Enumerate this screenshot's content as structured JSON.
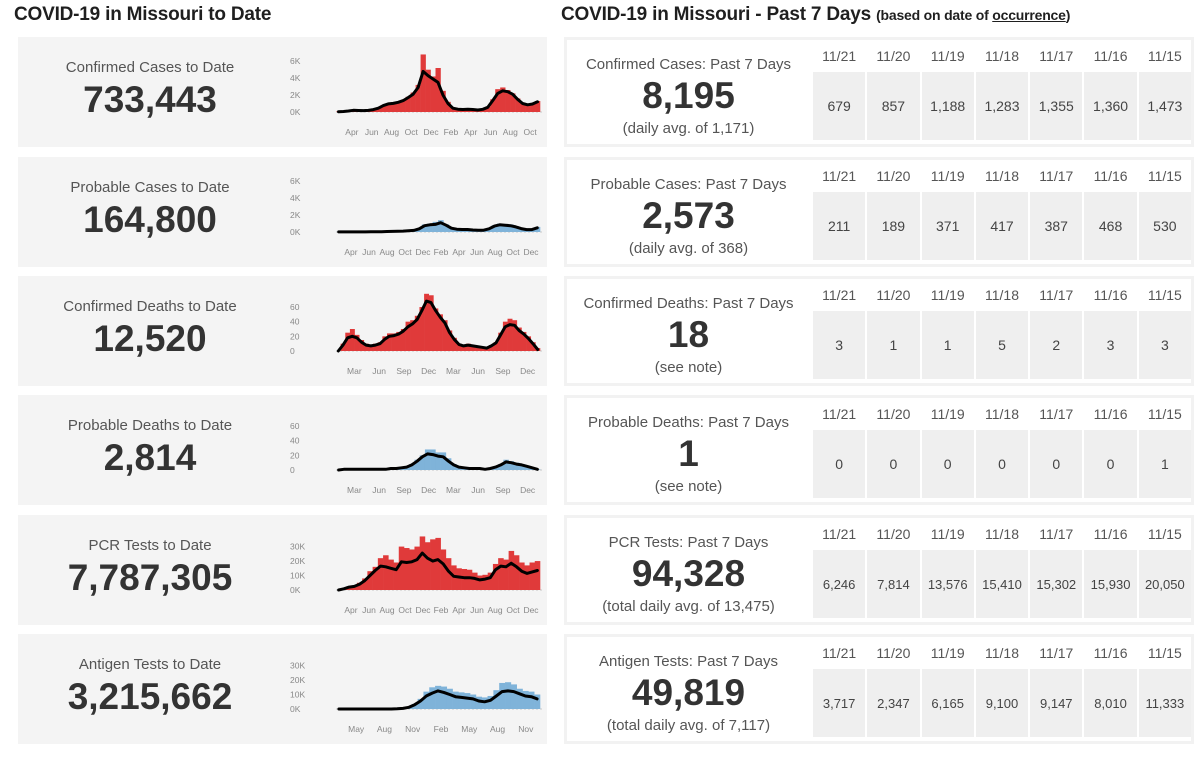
{
  "left_section": {
    "title": "COVID-19 in Missouri to Date",
    "panels": [
      {
        "label": "Confirmed Cases to Date",
        "value": "733,443",
        "chart_data": {
          "type": "bar",
          "bar_color": "#e03a3a",
          "y_ticks": [
            "6K",
            "4K",
            "2K",
            "0K"
          ],
          "y_tick_values": [
            6000,
            4000,
            2000,
            0
          ],
          "ylim": [
            0,
            6500
          ],
          "x_ticks": [
            "Apr",
            "Jun",
            "Aug",
            "Oct",
            "Dec",
            "Feb",
            "Apr",
            "Jun",
            "Aug",
            "Oct"
          ],
          "bars": [
            50,
            80,
            150,
            250,
            200,
            180,
            200,
            300,
            500,
            800,
            1000,
            1050,
            1200,
            1400,
            1800,
            2300,
            3200,
            6800,
            5000,
            4200,
            5200,
            2500,
            1200,
            500,
            350,
            300,
            350,
            300,
            250,
            350,
            600,
            1500,
            2700,
            2900,
            2600,
            2200,
            1600,
            1100,
            900,
            1000,
            1300
          ],
          "avg_line": [
            30,
            60,
            120,
            200,
            180,
            170,
            190,
            280,
            450,
            760,
            960,
            1020,
            1150,
            1350,
            1700,
            2100,
            2900,
            4800,
            4300,
            3900,
            3500,
            2000,
            1000,
            450,
            330,
            300,
            330,
            290,
            240,
            320,
            560,
            1350,
            2200,
            2500,
            2400,
            2100,
            1500,
            1000,
            850,
            950,
            1200
          ]
        }
      },
      {
        "label": "Probable Cases to Date",
        "value": "164,800",
        "chart_data": {
          "type": "bar",
          "bar_color": "#7fb3d9",
          "y_ticks": [
            "6K",
            "4K",
            "2K",
            "0K"
          ],
          "y_tick_values": [
            6000,
            4000,
            2000,
            0
          ],
          "ylim": [
            0,
            6500
          ],
          "x_ticks": [
            "Apr",
            "Jun",
            "Aug",
            "Oct",
            "Dec",
            "Feb",
            "Apr",
            "Jun",
            "Aug",
            "Oct",
            "Dec"
          ],
          "bars": [
            10,
            10,
            10,
            10,
            10,
            10,
            20,
            30,
            40,
            60,
            80,
            100,
            120,
            150,
            200,
            400,
            900,
            1000,
            1200,
            1400,
            900,
            500,
            350,
            300,
            300,
            250,
            200,
            220,
            400,
            800,
            1000,
            950,
            900,
            700,
            450,
            300,
            300,
            600
          ],
          "avg_line": [
            10,
            10,
            10,
            10,
            10,
            10,
            20,
            30,
            40,
            55,
            75,
            95,
            110,
            140,
            190,
            380,
            750,
            850,
            900,
            1100,
            800,
            450,
            330,
            300,
            290,
            240,
            200,
            210,
            380,
            700,
            850,
            800,
            750,
            600,
            400,
            280,
            280,
            500
          ]
        }
      },
      {
        "label": "Confirmed Deaths to Date",
        "value": "12,520",
        "chart_data": {
          "type": "bar",
          "bar_color": "#e03a3a",
          "y_ticks": [
            "60",
            "40",
            "20",
            "0"
          ],
          "y_tick_values": [
            60,
            40,
            20,
            0
          ],
          "ylim": [
            0,
            75
          ],
          "x_ticks": [
            "Mar",
            "Jun",
            "Sep",
            "Dec",
            "Mar",
            "Jun",
            "Sep",
            "Dec"
          ],
          "bars": [
            0,
            10,
            25,
            30,
            22,
            15,
            10,
            8,
            10,
            12,
            20,
            24,
            24,
            26,
            30,
            40,
            42,
            48,
            60,
            78,
            76,
            58,
            50,
            42,
            28,
            18,
            10,
            8,
            10,
            8,
            7,
            6,
            5,
            8,
            12,
            25,
            40,
            44,
            42,
            32,
            26,
            20,
            12,
            4
          ],
          "avg_line": [
            0,
            8,
            18,
            20,
            18,
            12,
            8,
            7,
            8,
            10,
            16,
            20,
            21,
            23,
            27,
            33,
            37,
            43,
            55,
            68,
            66,
            55,
            46,
            38,
            25,
            16,
            9,
            7,
            8,
            7,
            6,
            5,
            4,
            7,
            11,
            22,
            33,
            36,
            35,
            28,
            23,
            17,
            10,
            2
          ]
        }
      },
      {
        "label": "Probable Deaths to Date",
        "value": "2,814",
        "chart_data": {
          "type": "bar",
          "bar_color": "#7fb3d9",
          "y_ticks": [
            "60",
            "40",
            "20",
            "0"
          ],
          "y_tick_values": [
            60,
            40,
            20,
            0
          ],
          "ylim": [
            0,
            75
          ],
          "x_ticks": [
            "Mar",
            "Jun",
            "Sep",
            "Dec",
            "Mar",
            "Jun",
            "Sep",
            "Dec"
          ],
          "bars": [
            0,
            1,
            1,
            1,
            1,
            1,
            1,
            1,
            1,
            1,
            2,
            2,
            3,
            5,
            8,
            14,
            20,
            28,
            28,
            24,
            24,
            16,
            8,
            4,
            3,
            2,
            2,
            2,
            1,
            2,
            4,
            8,
            14,
            12,
            10,
            8,
            6,
            3,
            1
          ],
          "avg_line": [
            0,
            1,
            1,
            1,
            1,
            1,
            1,
            1,
            1,
            1,
            2,
            2,
            3,
            4,
            7,
            12,
            18,
            22,
            21,
            19,
            18,
            12,
            7,
            4,
            3,
            2,
            2,
            2,
            1,
            2,
            4,
            7,
            11,
            10,
            8,
            7,
            5,
            3,
            1
          ]
        }
      },
      {
        "label": "PCR Tests to Date",
        "value": "7,787,305",
        "chart_data": {
          "type": "bar",
          "bar_color": "#e03a3a",
          "y_ticks": [
            "30K",
            "20K",
            "10K",
            "0K"
          ],
          "y_tick_values": [
            30000,
            20000,
            10000,
            0
          ],
          "ylim": [
            0,
            38000
          ],
          "x_ticks": [
            "Apr",
            "Jun",
            "Aug",
            "Oct",
            "Dec",
            "Feb",
            "Apr",
            "Jun",
            "Aug",
            "Oct",
            "Dec"
          ],
          "bars": [
            0,
            1000,
            2500,
            3000,
            5000,
            8000,
            13000,
            16000,
            22000,
            24000,
            21000,
            19000,
            30000,
            29000,
            28000,
            30000,
            37000,
            33000,
            35000,
            36000,
            28000,
            22000,
            17000,
            15000,
            14500,
            14000,
            12000,
            10000,
            10500,
            12000,
            18000,
            22000,
            21000,
            27000,
            24000,
            19000,
            17000,
            19000,
            20000
          ],
          "avg_line": [
            0,
            800,
            2000,
            2500,
            4000,
            6500,
            10000,
            13500,
            16500,
            16000,
            15000,
            14000,
            19500,
            19000,
            19500,
            21000,
            25500,
            22000,
            20000,
            21000,
            18000,
            13000,
            9500,
            9000,
            8500,
            8500,
            8000,
            7000,
            7500,
            8500,
            14000,
            16500,
            16000,
            18500,
            16000,
            13000,
            11500,
            12500,
            13500
          ]
        }
      },
      {
        "label": "Antigen Tests to Date",
        "value": "3,215,662",
        "chart_data": {
          "type": "bar",
          "bar_color": "#7fb3d9",
          "y_ticks": [
            "30K",
            "20K",
            "10K",
            "0K"
          ],
          "y_tick_values": [
            30000,
            20000,
            10000,
            0
          ],
          "ylim": [
            0,
            38000
          ],
          "x_ticks": [
            "May",
            "Aug",
            "Nov",
            "Feb",
            "May",
            "Aug",
            "Nov"
          ],
          "bars": [
            0,
            0,
            0,
            0,
            0,
            0,
            0,
            0,
            0,
            0,
            200,
            500,
            1500,
            3500,
            7000,
            12000,
            15000,
            16000,
            15500,
            14000,
            12000,
            11500,
            11000,
            10000,
            8500,
            8000,
            9000,
            13000,
            18000,
            18500,
            17000,
            14000,
            12500,
            12000,
            10000
          ],
          "avg_line": [
            0,
            0,
            0,
            0,
            0,
            0,
            0,
            0,
            0,
            0,
            150,
            400,
            1200,
            3000,
            5500,
            9000,
            11000,
            12500,
            11500,
            10000,
            8500,
            8000,
            7500,
            7000,
            5500,
            5000,
            6000,
            9000,
            12000,
            12500,
            12000,
            10500,
            9000,
            8500,
            7000
          ]
        }
      }
    ]
  },
  "right_section": {
    "title": "COVID-19 in Missouri - Past 7 Days",
    "note_prefix": "(based on date of ",
    "note_link": "occurrence",
    "note_suffix": ")",
    "dates": [
      "11/21",
      "11/20",
      "11/19",
      "11/18",
      "11/17",
      "11/16",
      "11/15"
    ],
    "panels": [
      {
        "label": "Confirmed Cases: Past 7 Days",
        "value": "8,195",
        "sub": "(daily avg. of 1,171)",
        "daily": [
          "679",
          "857",
          "1,188",
          "1,283",
          "1,355",
          "1,360",
          "1,473"
        ]
      },
      {
        "label": "Probable Cases: Past 7 Days",
        "value": "2,573",
        "sub": "(daily avg. of 368)",
        "daily": [
          "211",
          "189",
          "371",
          "417",
          "387",
          "468",
          "530"
        ]
      },
      {
        "label": "Confirmed Deaths: Past 7 Days",
        "value": "18",
        "sub": "(see note)",
        "daily": [
          "3",
          "1",
          "1",
          "5",
          "2",
          "3",
          "3"
        ]
      },
      {
        "label": "Probable Deaths: Past 7 Days",
        "value": "1",
        "sub": "(see note)",
        "daily": [
          "0",
          "0",
          "0",
          "0",
          "0",
          "0",
          "1"
        ]
      },
      {
        "label": "PCR Tests: Past 7 Days",
        "value": "94,328",
        "sub": "(total daily avg. of 13,475)",
        "daily": [
          "6,246",
          "7,814",
          "13,576",
          "15,410",
          "15,302",
          "15,930",
          "20,050"
        ]
      },
      {
        "label": "Antigen Tests: Past 7 Days",
        "value": "49,819",
        "sub": "(total daily avg. of 7,117)",
        "daily": [
          "3,717",
          "2,347",
          "6,165",
          "9,100",
          "9,147",
          "8,010",
          "11,333"
        ]
      }
    ]
  }
}
